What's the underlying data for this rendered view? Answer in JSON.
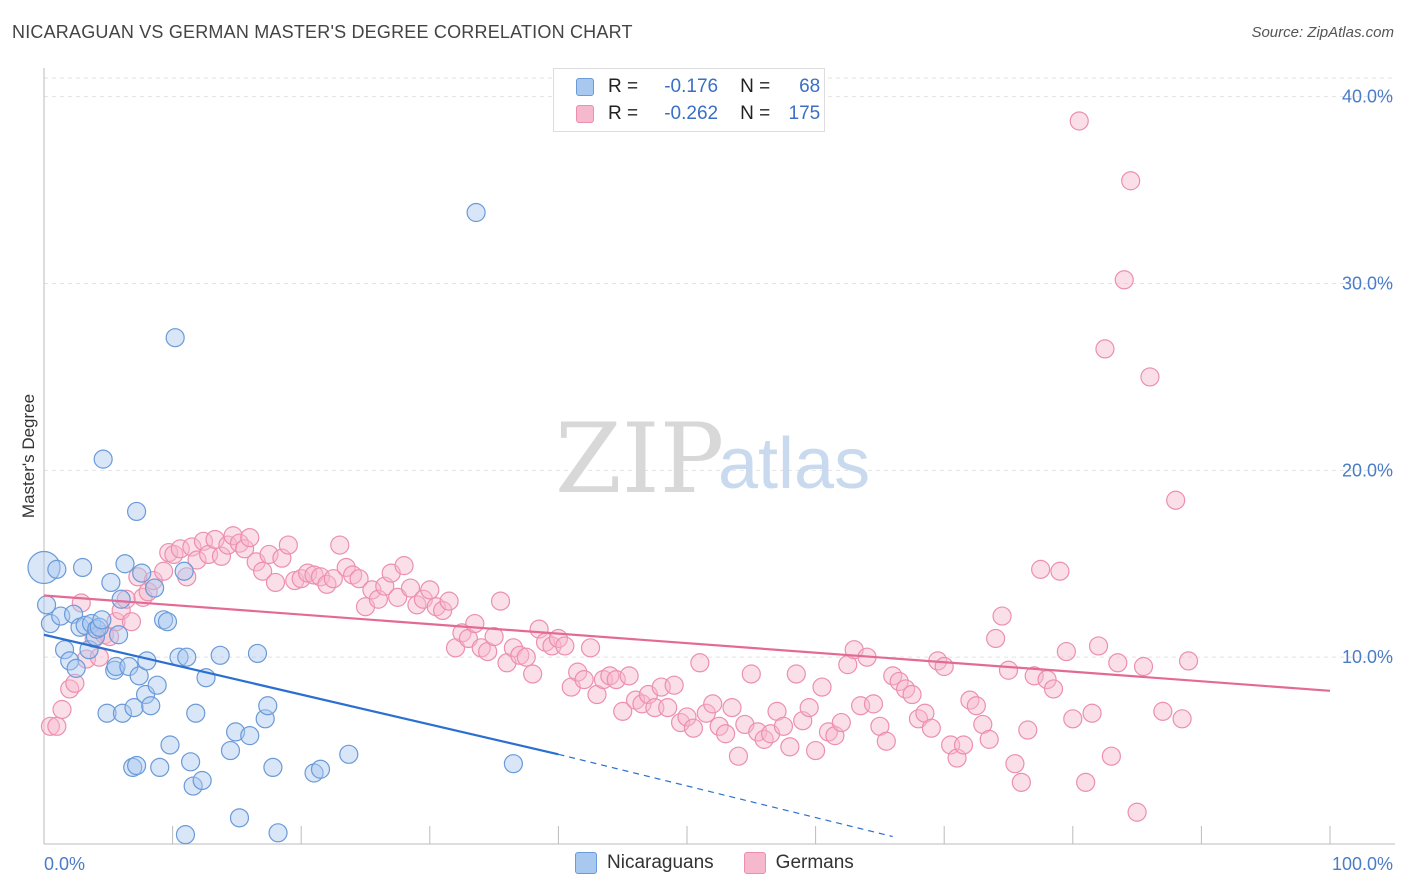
{
  "title": "NICARAGUAN VS GERMAN MASTER'S DEGREE CORRELATION CHART",
  "source": "Source: ZipAtlas.com",
  "watermark": {
    "zip": "ZIP",
    "atlas": "atlas"
  },
  "colors": {
    "nic_fill": "#a8c8f0",
    "nic_stroke": "#6a9ad8",
    "nic_line": "#2b6fd0",
    "ger_fill": "#f6b8cc",
    "ger_stroke": "#ec8fae",
    "ger_line": "#e46a96",
    "tick": "#4a7cc7",
    "grid": "#e2e2e2"
  },
  "stats": {
    "nic": {
      "r_label": "R =",
      "r": "-0.176",
      "n_label": "N =",
      "n": "68"
    },
    "ger": {
      "r_label": "R =",
      "r": "-0.262",
      "n_label": "N =",
      "n": "175"
    }
  },
  "legend": {
    "nic": "Nicaraguans",
    "ger": "Germans"
  },
  "chart_data": {
    "type": "scatter",
    "xlabel": "",
    "ylabel": "Master's Degree",
    "xlim": [
      0,
      100
    ],
    "ylim": [
      0,
      41
    ],
    "x_tick_labels": [
      {
        "v": 0,
        "label": "0.0%"
      },
      {
        "v": 100,
        "label": "100.0%"
      }
    ],
    "y_ticks": [
      {
        "v": 10,
        "label": "10.0%"
      },
      {
        "v": 20,
        "label": "20.0%"
      },
      {
        "v": 30,
        "label": "30.0%"
      },
      {
        "v": 40,
        "label": "40.0%"
      }
    ],
    "series": [
      {
        "name": "Nicaraguans",
        "trend": {
          "x0": 0,
          "y0": 11.2,
          "x1": 40,
          "y1": 4.8,
          "dash_to_x": 66,
          "dash_to_y": 0.4
        },
        "points": [
          [
            0,
            14.8
          ],
          [
            0.2,
            12.8
          ],
          [
            0.5,
            11.8
          ],
          [
            1,
            14.7
          ],
          [
            1.3,
            12.2
          ],
          [
            1.6,
            10.4
          ],
          [
            2,
            9.8
          ],
          [
            2.3,
            12.3
          ],
          [
            2.5,
            9.4
          ],
          [
            2.8,
            11.6
          ],
          [
            3,
            14.8
          ],
          [
            3.2,
            11.7
          ],
          [
            3.5,
            10.4
          ],
          [
            3.7,
            11.8
          ],
          [
            4,
            11.1
          ],
          [
            4.1,
            11.5
          ],
          [
            4.3,
            11.6
          ],
          [
            4.5,
            12.0
          ],
          [
            4.6,
            20.6
          ],
          [
            4.9,
            7.0
          ],
          [
            5.2,
            14.0
          ],
          [
            5.5,
            9.3
          ],
          [
            5.6,
            9.5
          ],
          [
            5.8,
            11.2
          ],
          [
            6,
            13.1
          ],
          [
            6.1,
            7.0
          ],
          [
            6.3,
            15.0
          ],
          [
            6.6,
            9.5
          ],
          [
            6.9,
            4.1
          ],
          [
            7,
            7.3
          ],
          [
            7.2,
            17.8
          ],
          [
            7.4,
            9.0
          ],
          [
            7.6,
            14.5
          ],
          [
            7.9,
            8.0
          ],
          [
            8,
            9.8
          ],
          [
            8.3,
            7.4
          ],
          [
            8.6,
            13.7
          ],
          [
            8.8,
            8.5
          ],
          [
            9,
            4.1
          ],
          [
            9.3,
            12.0
          ],
          [
            9.6,
            11.9
          ],
          [
            9.8,
            5.3
          ],
          [
            10.2,
            27.1
          ],
          [
            10.5,
            10.0
          ],
          [
            10.9,
            14.6
          ],
          [
            11.1,
            10.0
          ],
          [
            11.4,
            4.4
          ],
          [
            11.6,
            3.1
          ],
          [
            11.8,
            7.0
          ],
          [
            12.3,
            3.4
          ],
          [
            12.6,
            8.9
          ],
          [
            13.7,
            10.1
          ],
          [
            14.5,
            5.0
          ],
          [
            14.9,
            6.0
          ],
          [
            15.2,
            1.4
          ],
          [
            16,
            5.8
          ],
          [
            16.6,
            10.2
          ],
          [
            17.2,
            6.7
          ],
          [
            17.4,
            7.4
          ],
          [
            17.8,
            4.1
          ],
          [
            18.2,
            0.6
          ],
          [
            21,
            3.8
          ],
          [
            21.5,
            4.0
          ],
          [
            23.7,
            4.8
          ],
          [
            11,
            0.5
          ],
          [
            7.2,
            4.2
          ],
          [
            33.6,
            33.8
          ],
          [
            36.5,
            4.3
          ]
        ]
      },
      {
        "name": "Germans",
        "trend": {
          "x0": 0,
          "y0": 13.3,
          "x1": 100,
          "y1": 8.2
        },
        "points": [
          [
            0.5,
            6.3
          ],
          [
            1,
            6.3
          ],
          [
            1.4,
            7.2
          ],
          [
            2,
            8.3
          ],
          [
            2.4,
            8.6
          ],
          [
            2.9,
            12.9
          ],
          [
            3.3,
            9.9
          ],
          [
            3.9,
            11.0
          ],
          [
            4.3,
            10.0
          ],
          [
            4.7,
            11.2
          ],
          [
            5.1,
            11.1
          ],
          [
            5.6,
            11.9
          ],
          [
            6,
            12.5
          ],
          [
            6.4,
            13.1
          ],
          [
            6.8,
            11.9
          ],
          [
            7.3,
            14.3
          ],
          [
            7.7,
            13.2
          ],
          [
            8.1,
            13.5
          ],
          [
            8.5,
            14.1
          ],
          [
            9.3,
            14.6
          ],
          [
            9.7,
            15.6
          ],
          [
            10.1,
            15.5
          ],
          [
            10.6,
            15.8
          ],
          [
            11.1,
            14.3
          ],
          [
            11.5,
            15.9
          ],
          [
            11.9,
            15.2
          ],
          [
            12.4,
            16.2
          ],
          [
            12.8,
            15.5
          ],
          [
            13.3,
            16.3
          ],
          [
            13.8,
            15.4
          ],
          [
            14.3,
            16.0
          ],
          [
            14.7,
            16.5
          ],
          [
            15.2,
            16.1
          ],
          [
            15.6,
            15.8
          ],
          [
            16,
            16.4
          ],
          [
            16.5,
            15.1
          ],
          [
            17,
            14.6
          ],
          [
            17.5,
            15.5
          ],
          [
            18,
            14.0
          ],
          [
            18.5,
            15.3
          ],
          [
            19,
            16.0
          ],
          [
            19.5,
            14.1
          ],
          [
            20,
            14.2
          ],
          [
            20.5,
            14.5
          ],
          [
            21,
            14.4
          ],
          [
            21.5,
            14.3
          ],
          [
            22,
            13.9
          ],
          [
            22.5,
            14.2
          ],
          [
            23,
            16.0
          ],
          [
            23.5,
            14.8
          ],
          [
            24,
            14.4
          ],
          [
            24.5,
            14.2
          ],
          [
            25,
            12.7
          ],
          [
            25.5,
            13.6
          ],
          [
            26,
            13.1
          ],
          [
            26.5,
            13.8
          ],
          [
            27,
            14.5
          ],
          [
            27.5,
            13.2
          ],
          [
            28,
            14.9
          ],
          [
            28.5,
            13.7
          ],
          [
            29,
            12.8
          ],
          [
            29.5,
            13.1
          ],
          [
            30,
            13.6
          ],
          [
            30.5,
            12.7
          ],
          [
            31,
            12.5
          ],
          [
            31.5,
            13.0
          ],
          [
            32,
            10.5
          ],
          [
            32.5,
            11.3
          ],
          [
            33,
            11.0
          ],
          [
            33.5,
            11.8
          ],
          [
            34,
            10.5
          ],
          [
            34.5,
            10.3
          ],
          [
            35,
            11.1
          ],
          [
            35.5,
            13.0
          ],
          [
            36,
            9.7
          ],
          [
            36.5,
            10.5
          ],
          [
            37,
            10.1
          ],
          [
            37.5,
            10.0
          ],
          [
            38,
            9.1
          ],
          [
            38.5,
            11.5
          ],
          [
            39,
            10.8
          ],
          [
            39.5,
            10.6
          ],
          [
            40,
            11.0
          ],
          [
            40.5,
            10.6
          ],
          [
            41,
            8.4
          ],
          [
            41.5,
            9.2
          ],
          [
            42,
            8.8
          ],
          [
            42.5,
            10.5
          ],
          [
            43,
            8.0
          ],
          [
            43.5,
            8.8
          ],
          [
            44,
            9.0
          ],
          [
            44.5,
            8.8
          ],
          [
            45,
            7.1
          ],
          [
            45.5,
            9.0
          ],
          [
            46,
            7.7
          ],
          [
            46.5,
            7.5
          ],
          [
            47,
            8.0
          ],
          [
            47.5,
            7.3
          ],
          [
            48,
            8.4
          ],
          [
            48.5,
            7.3
          ],
          [
            49,
            8.5
          ],
          [
            49.5,
            6.5
          ],
          [
            50,
            6.8
          ],
          [
            50.5,
            6.2
          ],
          [
            51,
            9.7
          ],
          [
            51.5,
            7.0
          ],
          [
            52,
            7.5
          ],
          [
            52.5,
            6.3
          ],
          [
            53,
            5.9
          ],
          [
            53.5,
            7.3
          ],
          [
            54,
            4.7
          ],
          [
            54.5,
            6.4
          ],
          [
            55,
            9.1
          ],
          [
            55.5,
            6.0
          ],
          [
            56,
            5.6
          ],
          [
            56.5,
            5.9
          ],
          [
            57,
            7.1
          ],
          [
            57.5,
            6.3
          ],
          [
            58,
            5.2
          ],
          [
            58.5,
            9.1
          ],
          [
            59,
            6.6
          ],
          [
            59.5,
            7.3
          ],
          [
            60,
            5.0
          ],
          [
            60.5,
            8.4
          ],
          [
            61,
            6.0
          ],
          [
            61.5,
            5.8
          ],
          [
            62,
            6.5
          ],
          [
            62.5,
            9.6
          ],
          [
            63,
            10.4
          ],
          [
            63.5,
            7.4
          ],
          [
            64,
            10.0
          ],
          [
            64.5,
            7.5
          ],
          [
            65,
            6.3
          ],
          [
            65.5,
            5.5
          ],
          [
            66,
            9.0
          ],
          [
            66.5,
            8.7
          ],
          [
            67,
            8.3
          ],
          [
            67.5,
            8.0
          ],
          [
            68,
            6.7
          ],
          [
            68.5,
            7.0
          ],
          [
            69,
            6.2
          ],
          [
            69.5,
            9.8
          ],
          [
            70,
            9.5
          ],
          [
            70.5,
            5.3
          ],
          [
            71,
            4.6
          ],
          [
            71.5,
            5.3
          ],
          [
            72,
            7.7
          ],
          [
            72.5,
            7.4
          ],
          [
            73,
            6.4
          ],
          [
            73.5,
            5.6
          ],
          [
            74,
            11.0
          ],
          [
            74.5,
            12.2
          ],
          [
            75,
            9.3
          ],
          [
            75.5,
            4.3
          ],
          [
            76,
            3.3
          ],
          [
            76.5,
            6.1
          ],
          [
            77,
            9.0
          ],
          [
            77.5,
            14.7
          ],
          [
            78,
            8.8
          ],
          [
            78.5,
            8.3
          ],
          [
            79,
            14.6
          ],
          [
            79.5,
            10.3
          ],
          [
            80,
            6.7
          ],
          [
            80.5,
            38.7
          ],
          [
            81,
            3.3
          ],
          [
            81.5,
            7.0
          ],
          [
            82,
            10.6
          ],
          [
            82.5,
            26.5
          ],
          [
            83,
            4.7
          ],
          [
            83.5,
            9.7
          ],
          [
            84,
            30.2
          ],
          [
            84.5,
            35.5
          ],
          [
            85,
            1.7
          ],
          [
            85.5,
            9.5
          ],
          [
            86,
            25.0
          ],
          [
            87,
            7.1
          ],
          [
            88,
            18.4
          ],
          [
            88.5,
            6.7
          ],
          [
            89,
            9.8
          ]
        ]
      }
    ]
  }
}
